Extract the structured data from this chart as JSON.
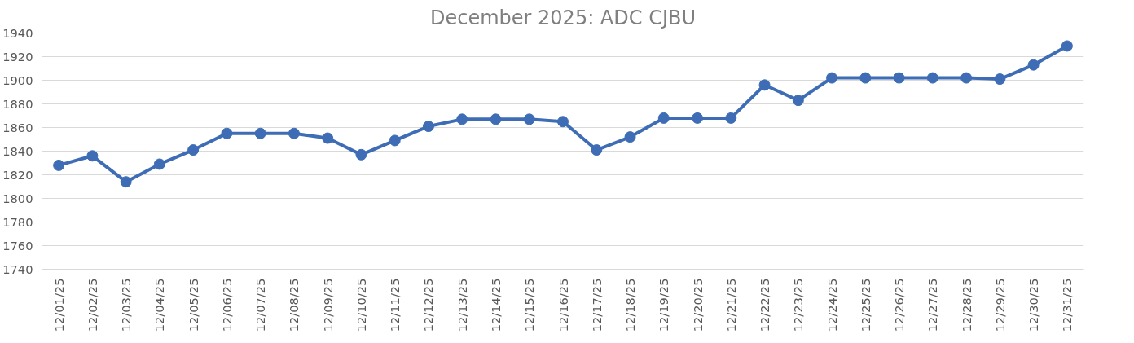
{
  "chart_data": {
    "type": "line",
    "title": "December 2025: ADC CJBU",
    "categories": [
      "12/01/25",
      "12/02/25",
      "12/03/25",
      "12/04/25",
      "12/05/25",
      "12/06/25",
      "12/07/25",
      "12/08/25",
      "12/09/25",
      "12/10/25",
      "12/11/25",
      "12/12/25",
      "12/13/25",
      "12/14/25",
      "12/15/25",
      "12/16/25",
      "12/17/25",
      "12/18/25",
      "12/19/25",
      "12/20/25",
      "12/21/25",
      "12/22/25",
      "12/23/25",
      "12/24/25",
      "12/25/25",
      "12/26/25",
      "12/27/25",
      "12/28/25",
      "12/29/25",
      "12/30/25",
      "12/31/25"
    ],
    "series": [
      {
        "color": "#3e6db5",
        "values": [
          1828,
          1836,
          1814,
          1829,
          1841,
          1855,
          1855,
          1855,
          1851,
          1837,
          1849,
          1861,
          1867,
          1867,
          1867,
          1865,
          1841,
          1852,
          1868,
          1868,
          1868,
          1896,
          1883,
          1902,
          1902,
          1902,
          1902,
          1902,
          1901,
          1913,
          1929
        ]
      }
    ],
    "ylim": [
      1740,
      1940
    ],
    "yticks": [
      1740,
      1760,
      1780,
      1800,
      1820,
      1840,
      1860,
      1880,
      1900,
      1920,
      1940
    ],
    "grid": "y",
    "marker": "circle",
    "line_style": "solid"
  }
}
